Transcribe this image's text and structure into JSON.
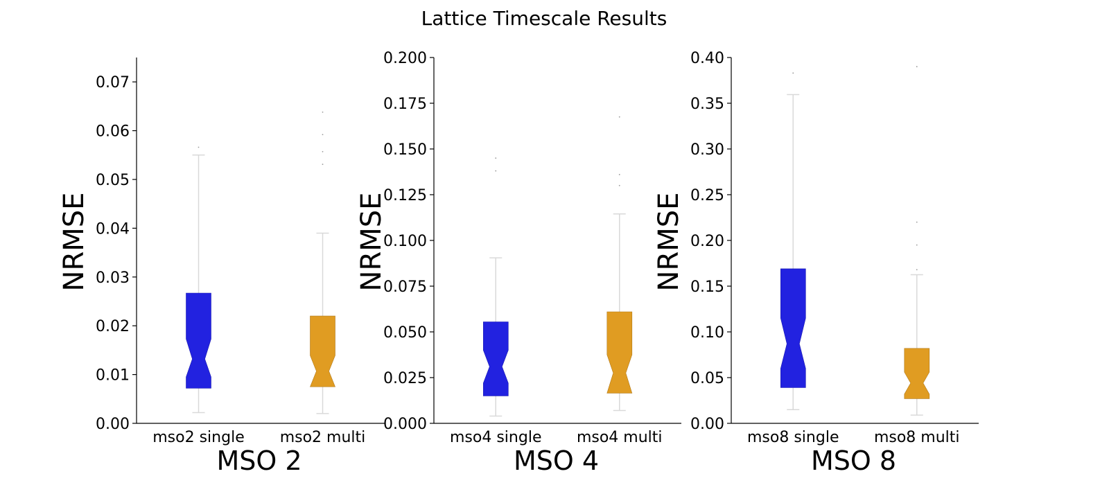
{
  "title": "Lattice Timescale Results",
  "colors": {
    "single": "#2222e0",
    "multi": "#e09c22",
    "whisker": "#d9d9d9",
    "axis": "#000000"
  },
  "chart_data": [
    {
      "type": "box",
      "xlabel": "MSO 2",
      "ylabel": "NRMSE",
      "ylim": [
        0,
        0.075
      ],
      "yticks": [
        "0.00",
        "0.01",
        "0.02",
        "0.03",
        "0.04",
        "0.05",
        "0.06",
        "0.07"
      ],
      "yvals": [
        0,
        0.01,
        0.02,
        0.03,
        0.04,
        0.05,
        0.06,
        0.07
      ],
      "categories": [
        "mso2 single",
        "mso2 multi"
      ],
      "boxes": [
        {
          "name": "mso2 single",
          "color": "single",
          "whislo": 0.0022,
          "q1": 0.0072,
          "med": 0.0132,
          "q3": 0.0267,
          "whishi": 0.055,
          "notch_lo": 0.0095,
          "notch_hi": 0.0173,
          "fliers": [
            0.0566
          ]
        },
        {
          "name": "mso2 multi",
          "color": "multi",
          "whislo": 0.002,
          "q1": 0.0075,
          "med": 0.0107,
          "q3": 0.022,
          "whishi": 0.039,
          "notch_lo": 0.0075,
          "notch_hi": 0.0139,
          "fliers": [
            0.0531,
            0.0557,
            0.0592,
            0.0638
          ]
        }
      ]
    },
    {
      "type": "box",
      "xlabel": "MSO 4",
      "ylabel": "NRMSE",
      "ylim": [
        0,
        0.2
      ],
      "yticks": [
        "0.000",
        "0.025",
        "0.050",
        "0.075",
        "0.100",
        "0.125",
        "0.150",
        "0.175",
        "0.200"
      ],
      "yvals": [
        0,
        0.025,
        0.05,
        0.075,
        0.1,
        0.125,
        0.15,
        0.175,
        0.2
      ],
      "categories": [
        "mso4 single",
        "mso4 multi"
      ],
      "boxes": [
        {
          "name": "mso4 single",
          "color": "single",
          "whislo": 0.004,
          "q1": 0.015,
          "med": 0.031,
          "q3": 0.0555,
          "whishi": 0.0905,
          "notch_lo": 0.022,
          "notch_hi": 0.04,
          "fliers": [
            0.138,
            0.145
          ]
        },
        {
          "name": "mso4 multi",
          "color": "multi",
          "whislo": 0.007,
          "q1": 0.0165,
          "med": 0.0275,
          "q3": 0.061,
          "whishi": 0.1145,
          "notch_lo": 0.0165,
          "notch_hi": 0.0375,
          "fliers": [
            0.13,
            0.136,
            0.1675
          ]
        }
      ]
    },
    {
      "type": "box",
      "xlabel": "MSO 8",
      "ylabel": "NRMSE",
      "ylim": [
        0,
        0.4
      ],
      "yticks": [
        "0.00",
        "0.05",
        "0.10",
        "0.15",
        "0.20",
        "0.25",
        "0.30",
        "0.35",
        "0.40"
      ],
      "yvals": [
        0,
        0.05,
        0.1,
        0.15,
        0.2,
        0.25,
        0.3,
        0.35,
        0.4
      ],
      "categories": [
        "mso8 single",
        "mso8 multi"
      ],
      "boxes": [
        {
          "name": "mso8 single",
          "color": "single",
          "whislo": 0.015,
          "q1": 0.039,
          "med": 0.087,
          "q3": 0.169,
          "whishi": 0.3595,
          "notch_lo": 0.06,
          "notch_hi": 0.115,
          "fliers": [
            0.383
          ]
        },
        {
          "name": "mso8 multi",
          "color": "multi",
          "whislo": 0.009,
          "q1": 0.027,
          "med": 0.044,
          "q3": 0.082,
          "whishi": 0.1625,
          "notch_lo": 0.032,
          "notch_hi": 0.056,
          "fliers": [
            0.168,
            0.195,
            0.22,
            0.39
          ]
        }
      ]
    }
  ]
}
